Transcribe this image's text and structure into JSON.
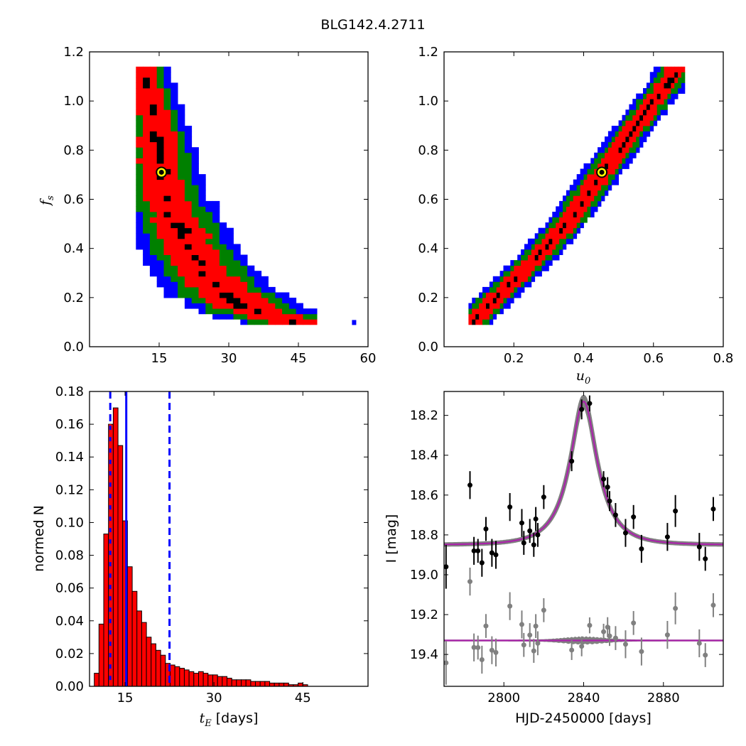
{
  "figure": {
    "title": "BLG142.4.2711"
  },
  "colors": {
    "confidence_levels": [
      "#000000",
      "#ff0000",
      "#008000",
      "#0000ff"
    ],
    "best_fit_marker_fill": "#ffff00",
    "hist_bar": "#ff0000",
    "hist_dashed": "#0000ff",
    "hist_dashed_red": "#ff0000",
    "data_points": "#000000",
    "residual_points": "#808080",
    "model_band": "#808080",
    "model_line": "#aa22aa"
  },
  "chart_data": [
    {
      "id": "fs_vs_tE",
      "type": "heatmap",
      "title": "",
      "xlabel": "",
      "ylabel_main": "f",
      "ylabel_sub": "s",
      "xlim": [
        0,
        60
      ],
      "ylim": [
        0,
        1.2
      ],
      "xticks": [
        "15",
        "30",
        "45",
        "60"
      ],
      "yticks": [
        "0.0",
        "0.2",
        "0.4",
        "0.6",
        "0.8",
        "1.0",
        "1.2"
      ],
      "best_fit": {
        "x": 15.5,
        "y": 0.71
      },
      "ridge": [
        [
          11.5,
          1.14
        ],
        [
          13,
          1.0
        ],
        [
          14.5,
          0.85
        ],
        [
          15.5,
          0.71
        ],
        [
          17,
          0.6
        ],
        [
          19,
          0.5
        ],
        [
          21.5,
          0.4
        ],
        [
          25,
          0.3
        ],
        [
          29,
          0.22
        ],
        [
          35,
          0.15
        ],
        [
          42,
          0.11
        ],
        [
          48,
          0.09
        ]
      ],
      "level_half_widths": [
        0.5,
        2.3,
        3.6,
        4.8
      ],
      "outlier": {
        "x": 57,
        "y": 0.1
      }
    },
    {
      "id": "fs_vs_u0",
      "type": "heatmap",
      "title": "",
      "xlabel_main": "u",
      "xlabel_sub": "0",
      "ylabel": "",
      "xlim": [
        0,
        0.8
      ],
      "ylim": [
        0,
        1.2
      ],
      "xticks": [
        "0.2",
        "0.4",
        "0.6",
        "0.8"
      ],
      "yticks": [
        "0.0",
        "0.2",
        "0.4",
        "0.6",
        "0.8",
        "1.0",
        "1.2"
      ],
      "best_fit": {
        "x": 0.452,
        "y": 0.71
      },
      "ridge": [
        [
          0.08,
          0.1
        ],
        [
          0.15,
          0.2
        ],
        [
          0.22,
          0.3
        ],
        [
          0.29,
          0.4
        ],
        [
          0.35,
          0.5
        ],
        [
          0.4,
          0.6
        ],
        [
          0.452,
          0.71
        ],
        [
          0.5,
          0.8
        ],
        [
          0.55,
          0.9
        ],
        [
          0.6,
          1.0
        ],
        [
          0.64,
          1.07
        ],
        [
          0.67,
          1.14
        ]
      ],
      "level_half_widths": [
        0.006,
        0.03,
        0.045,
        0.06
      ]
    },
    {
      "id": "tE_histogram",
      "type": "bar",
      "title": "",
      "xlabel_main": "t",
      "xlabel_sub": "E",
      "xlabel_unit": " [days]",
      "ylabel": "normed N",
      "xlim": [
        9,
        56
      ],
      "ylim": [
        0,
        0.18
      ],
      "bin_width": 0.8,
      "bin_start": 9.8,
      "values": [
        0.008,
        0.038,
        0.093,
        0.16,
        0.17,
        0.147,
        0.101,
        0.073,
        0.058,
        0.046,
        0.039,
        0.03,
        0.026,
        0.022,
        0.019,
        0.014,
        0.013,
        0.012,
        0.011,
        0.01,
        0.009,
        0.008,
        0.009,
        0.008,
        0.007,
        0.007,
        0.006,
        0.006,
        0.005,
        0.004,
        0.004,
        0.004,
        0.004,
        0.003,
        0.003,
        0.003,
        0.003,
        0.002,
        0.002,
        0.002,
        0.002,
        0.001,
        0.001,
        0.002,
        0.001
      ],
      "xticks": [
        "15",
        "30",
        "45"
      ],
      "yticks": [
        "0.00",
        "0.02",
        "0.04",
        "0.06",
        "0.08",
        "0.10",
        "0.12",
        "0.14",
        "0.16",
        "0.18"
      ],
      "vlines": [
        {
          "x": 12.5,
          "style": "dashed",
          "color": "blue"
        },
        {
          "x": 15.2,
          "style": "solid",
          "color": "blue"
        },
        {
          "x": 22.5,
          "style": "dashed",
          "color": "blue"
        }
      ]
    },
    {
      "id": "light_curve",
      "type": "scatter",
      "title": "",
      "xlabel": "HJD-2450000 [days]",
      "ylabel": "I [mag]",
      "xlim": [
        2770,
        2910
      ],
      "ylim": [
        19.56,
        18.08
      ],
      "xticks": [
        "2800",
        "2840",
        "2880"
      ],
      "yticks": [
        "18.2",
        "18.4",
        "18.6",
        "18.8",
        "19.0",
        "19.2",
        "19.4"
      ],
      "model": {
        "t0": 2840,
        "u0": 0.452,
        "tE": 15.5,
        "baseline": 18.85,
        "peak": 18.13
      },
      "residual_offset": 19.33,
      "points": [
        {
          "x": 2771,
          "y": 18.96,
          "err": 0.11
        },
        {
          "x": 2783,
          "y": 18.55,
          "err": 0.07
        },
        {
          "x": 2785,
          "y": 18.88,
          "err": 0.07
        },
        {
          "x": 2787,
          "y": 18.88,
          "err": 0.06
        },
        {
          "x": 2789,
          "y": 18.94,
          "err": 0.07
        },
        {
          "x": 2791,
          "y": 18.77,
          "err": 0.06
        },
        {
          "x": 2794,
          "y": 18.89,
          "err": 0.07
        },
        {
          "x": 2796,
          "y": 18.9,
          "err": 0.07
        },
        {
          "x": 2803,
          "y": 18.66,
          "err": 0.07
        },
        {
          "x": 2809,
          "y": 18.74,
          "err": 0.07
        },
        {
          "x": 2810,
          "y": 18.84,
          "err": 0.06
        },
        {
          "x": 2813,
          "y": 18.78,
          "err": 0.06
        },
        {
          "x": 2815,
          "y": 18.85,
          "err": 0.06
        },
        {
          "x": 2816,
          "y": 18.72,
          "err": 0.06
        },
        {
          "x": 2817,
          "y": 18.8,
          "err": 0.06
        },
        {
          "x": 2820,
          "y": 18.61,
          "err": 0.06
        },
        {
          "x": 2834,
          "y": 18.43,
          "err": 0.05
        },
        {
          "x": 2839,
          "y": 18.17,
          "err": 0.05
        },
        {
          "x": 2843,
          "y": 18.14,
          "err": 0.04
        },
        {
          "x": 2850,
          "y": 18.52,
          "err": 0.04
        },
        {
          "x": 2852,
          "y": 18.56,
          "err": 0.05
        },
        {
          "x": 2853,
          "y": 18.63,
          "err": 0.05
        },
        {
          "x": 2856,
          "y": 18.7,
          "err": 0.06
        },
        {
          "x": 2861,
          "y": 18.79,
          "err": 0.07
        },
        {
          "x": 2865,
          "y": 18.71,
          "err": 0.06
        },
        {
          "x": 2869,
          "y": 18.87,
          "err": 0.07
        },
        {
          "x": 2882,
          "y": 18.81,
          "err": 0.07
        },
        {
          "x": 2886,
          "y": 18.68,
          "err": 0.08
        },
        {
          "x": 2898,
          "y": 18.86,
          "err": 0.07
        },
        {
          "x": 2901,
          "y": 18.92,
          "err": 0.06
        },
        {
          "x": 2905,
          "y": 18.67,
          "err": 0.06
        }
      ]
    }
  ]
}
